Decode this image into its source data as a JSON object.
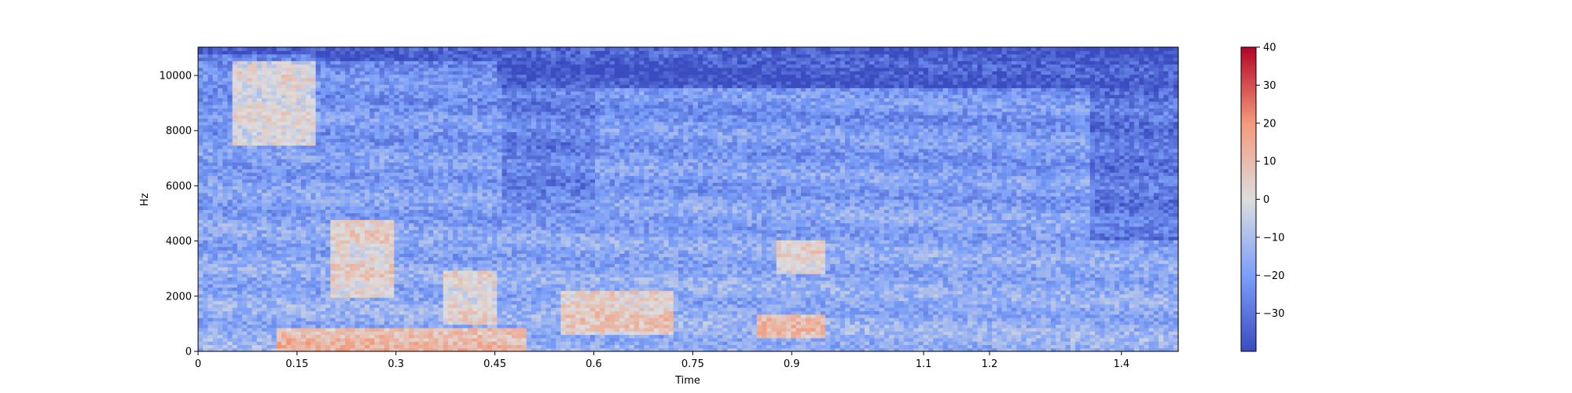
{
  "chart_data": {
    "type": "heatmap",
    "title": "",
    "xlabel": "Time",
    "ylabel": "Hz",
    "xlim": [
      0,
      1.486
    ],
    "ylim": [
      0,
      11025
    ],
    "x_ticks": [
      {
        "value": 0,
        "label": "0"
      },
      {
        "value": 0.15,
        "label": "0.15"
      },
      {
        "value": 0.3,
        "label": "0.3"
      },
      {
        "value": 0.45,
        "label": "0.45"
      },
      {
        "value": 0.6,
        "label": "0.6"
      },
      {
        "value": 0.75,
        "label": "0.75"
      },
      {
        "value": 0.9,
        "label": "0.9"
      },
      {
        "value": 1.1,
        "label": "1.1"
      },
      {
        "value": 1.2,
        "label": "1.2"
      },
      {
        "value": 1.4,
        "label": "1.4"
      }
    ],
    "y_ticks": [
      0,
      2000,
      4000,
      6000,
      8000,
      10000
    ],
    "colorbar": {
      "colormap": "coolwarm",
      "min": -40,
      "max": 40,
      "ticks": [
        -30,
        -20,
        -10,
        0,
        10,
        20,
        30,
        40
      ]
    },
    "colors": {
      "cool": "#3b4cc0",
      "neutral": "#dddddd",
      "warm": "#b40426"
    },
    "regions": [
      {
        "t": [
          0.05,
          0.18
        ],
        "f": [
          7500,
          10500
        ],
        "db": 12
      },
      {
        "t": [
          0.2,
          0.3
        ],
        "f": [
          2000,
          4800
        ],
        "db": 14
      },
      {
        "t": [
          0.37,
          0.45
        ],
        "f": [
          1000,
          3000
        ],
        "db": 10
      },
      {
        "t": [
          0.55,
          0.72
        ],
        "f": [
          600,
          2200
        ],
        "db": 16
      },
      {
        "t": [
          0.88,
          0.95
        ],
        "f": [
          2800,
          4000
        ],
        "db": 12
      },
      {
        "t": [
          0.12,
          0.5
        ],
        "f": [
          0,
          800
        ],
        "db": 24
      },
      {
        "t": [
          0.85,
          0.95
        ],
        "f": [
          500,
          1300
        ],
        "db": 22
      },
      {
        "t": [
          0.46,
          0.6
        ],
        "f": [
          5000,
          11025
        ],
        "db": -30
      },
      {
        "t": [
          1.35,
          1.486
        ],
        "f": [
          4000,
          11025
        ],
        "db": -34
      }
    ]
  }
}
